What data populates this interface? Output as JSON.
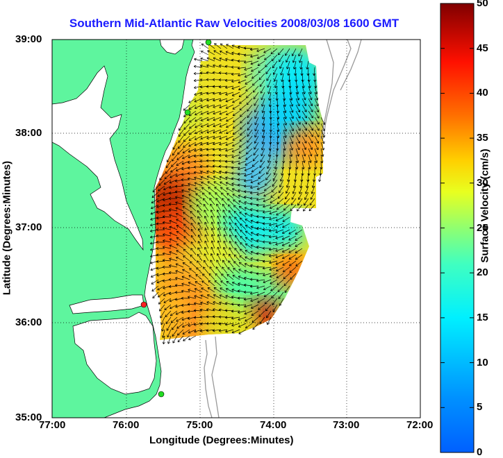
{
  "title": "Southern Mid-Atlantic Raw Velocities 2008/03/08 1600 GMT",
  "xlabel": "Longitude (Degrees:Minutes)",
  "ylabel": "Latitude (Degrees:Minutes)",
  "x_ticks": [
    "77:00",
    "76:00",
    "75:00",
    "74:00",
    "73:00",
    "72:00"
  ],
  "y_ticks": [
    "39:00",
    "38:00",
    "37:00",
    "36:00",
    "35:00"
  ],
  "colorbar": {
    "label": "Surface Velocity (cm/s)",
    "ticks": [
      "50",
      "45",
      "40",
      "35",
      "30",
      "25",
      "20",
      "15",
      "10",
      "5",
      "0"
    ],
    "range": [
      0,
      50
    ]
  },
  "colors": {
    "land": "#5ef59e",
    "water": "#ffffff",
    "title": "#1a1aff",
    "station": "#22dd22",
    "station_active": "#ff2222"
  }
}
